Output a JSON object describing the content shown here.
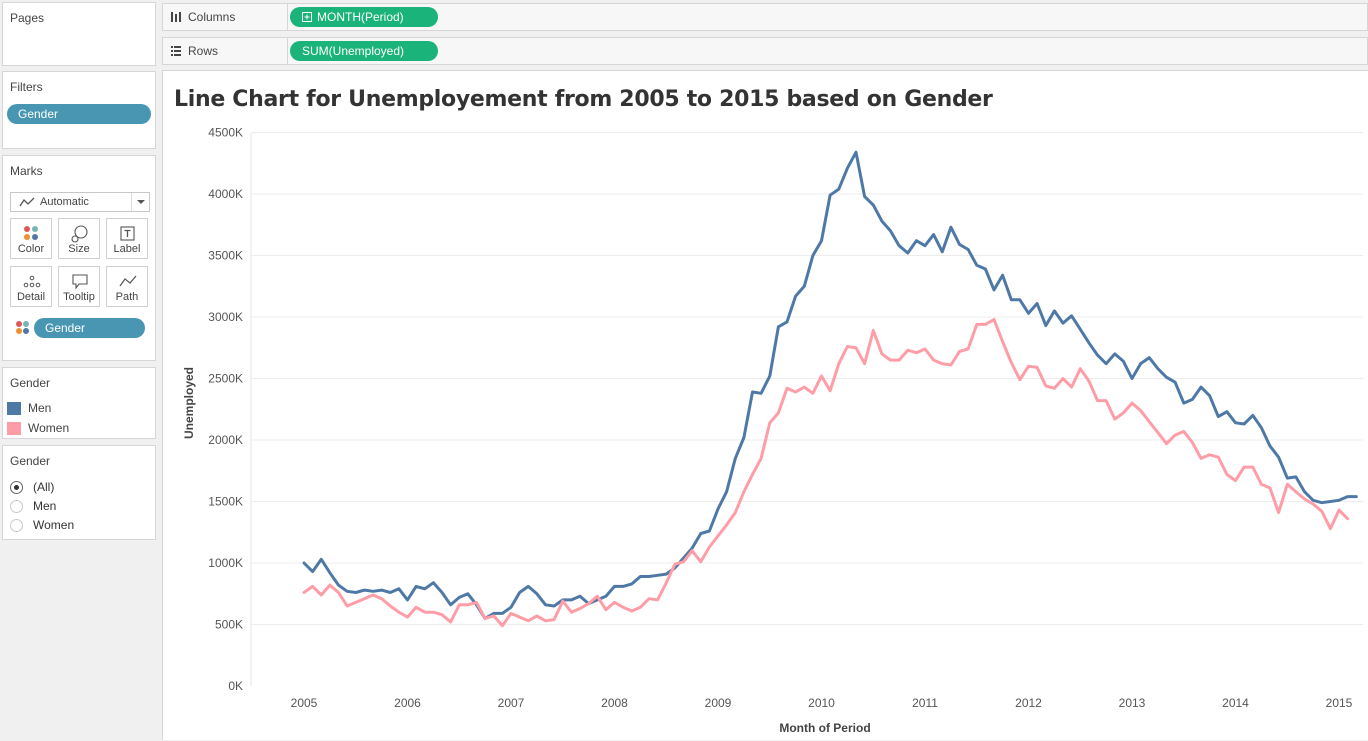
{
  "pages_card": {
    "title": "Pages"
  },
  "filters_card": {
    "title": "Filters",
    "pill": "Gender"
  },
  "marks_card": {
    "title": "Marks",
    "mark_type": "Automatic",
    "buttons": {
      "color": "Color",
      "size": "Size",
      "label": "Label",
      "detail": "Detail",
      "tooltip": "Tooltip",
      "path": "Path"
    },
    "color_pill": "Gender"
  },
  "legend_card": {
    "title": "Gender",
    "items": [
      {
        "label": "Men",
        "color": "#4e79a7"
      },
      {
        "label": "Women",
        "color": "#ff9da7"
      }
    ]
  },
  "filter_control": {
    "title": "Gender",
    "options": [
      "(All)",
      "Men",
      "Women"
    ],
    "selected": "(All)"
  },
  "shelves": {
    "columns_label": "Columns",
    "columns_pill": "MONTH(Period)",
    "rows_label": "Rows",
    "rows_pill": "SUM(Unemployed)"
  },
  "chart_data": {
    "type": "line",
    "title": "Line Chart for Unemployement from 2005 to 2015 based on Gender",
    "xlabel": "Month of Period",
    "ylabel": "Unemployed",
    "x_start": "2005-01",
    "x_end": "2015-01",
    "x_ticks": [
      "2005",
      "2006",
      "2007",
      "2008",
      "2009",
      "2010",
      "2011",
      "2012",
      "2013",
      "2014",
      "2015"
    ],
    "y_ticks": [
      "0K",
      "500K",
      "1000K",
      "1500K",
      "2000K",
      "2500K",
      "3000K",
      "3500K",
      "4000K",
      "4500K"
    ],
    "ylim": [
      0,
      4500000
    ],
    "grid": true,
    "series": [
      {
        "name": "Men",
        "color": "#4e79a7",
        "start": "2005-01",
        "values": [
          1000000,
          930000,
          1030000,
          920000,
          820000,
          770000,
          760000,
          780000,
          770000,
          780000,
          760000,
          790000,
          700000,
          810000,
          790000,
          840000,
          760000,
          660000,
          720000,
          750000,
          660000,
          550000,
          590000,
          590000,
          640000,
          760000,
          810000,
          750000,
          660000,
          650000,
          700000,
          700000,
          730000,
          670000,
          700000,
          730000,
          810000,
          810000,
          830000,
          890000,
          890000,
          900000,
          910000,
          960000,
          1040000,
          1120000,
          1240000,
          1260000,
          1440000,
          1580000,
          1850000,
          2020000,
          2390000,
          2380000,
          2520000,
          2920000,
          2960000,
          3170000,
          3250000,
          3500000,
          3620000,
          3990000,
          4040000,
          4210000,
          4340000,
          3980000,
          3910000,
          3780000,
          3700000,
          3580000,
          3520000,
          3620000,
          3580000,
          3670000,
          3530000,
          3730000,
          3590000,
          3550000,
          3420000,
          3390000,
          3220000,
          3340000,
          3140000,
          3140000,
          3030000,
          3110000,
          2930000,
          3050000,
          2950000,
          3010000,
          2900000,
          2790000,
          2690000,
          2620000,
          2700000,
          2640000,
          2500000,
          2620000,
          2670000,
          2580000,
          2510000,
          2470000,
          2300000,
          2330000,
          2430000,
          2360000,
          2190000,
          2230000,
          2140000,
          2130000,
          2200000,
          2100000,
          1950000,
          1860000,
          1690000,
          1700000,
          1580000,
          1510000,
          1490000,
          1500000,
          1510000,
          1540000,
          1540000
        ]
      },
      {
        "name": "Women",
        "color": "#ff9da7",
        "start": "2005-01",
        "values": [
          760000,
          810000,
          740000,
          820000,
          760000,
          650000,
          680000,
          710000,
          740000,
          710000,
          650000,
          600000,
          560000,
          640000,
          600000,
          600000,
          580000,
          520000,
          660000,
          660000,
          680000,
          550000,
          570000,
          490000,
          590000,
          560000,
          530000,
          570000,
          530000,
          540000,
          690000,
          600000,
          630000,
          670000,
          730000,
          620000,
          680000,
          640000,
          610000,
          640000,
          710000,
          700000,
          840000,
          990000,
          1010000,
          1100000,
          1010000,
          1130000,
          1220000,
          1310000,
          1410000,
          1580000,
          1720000,
          1850000,
          2140000,
          2220000,
          2420000,
          2390000,
          2430000,
          2380000,
          2520000,
          2400000,
          2620000,
          2760000,
          2750000,
          2620000,
          2890000,
          2700000,
          2650000,
          2650000,
          2730000,
          2710000,
          2740000,
          2650000,
          2620000,
          2610000,
          2720000,
          2740000,
          2940000,
          2940000,
          2980000,
          2800000,
          2630000,
          2490000,
          2600000,
          2590000,
          2440000,
          2420000,
          2500000,
          2430000,
          2580000,
          2480000,
          2320000,
          2320000,
          2170000,
          2220000,
          2300000,
          2240000,
          2150000,
          2060000,
          1970000,
          2040000,
          2070000,
          1980000,
          1850000,
          1880000,
          1860000,
          1720000,
          1670000,
          1780000,
          1780000,
          1640000,
          1610000,
          1410000,
          1640000,
          1580000,
          1520000,
          1480000,
          1420000,
          1280000,
          1430000,
          1360000
        ]
      }
    ]
  }
}
